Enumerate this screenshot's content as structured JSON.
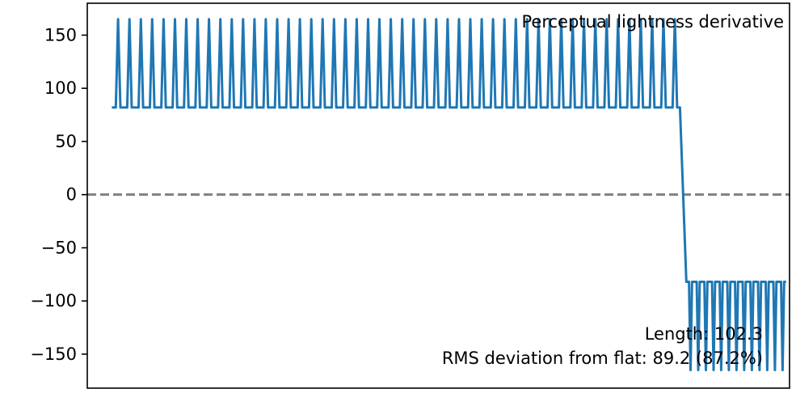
{
  "chart_data": {
    "type": "line",
    "title": "Perceptual lightness derivative",
    "xlabel": "",
    "ylabel": "",
    "ylim": [
      -182,
      180
    ],
    "xlim": [
      0,
      1
    ],
    "y_ticks": [
      150,
      100,
      50,
      0,
      -50,
      -100,
      -150
    ],
    "y_tick_labels": [
      "150",
      "100",
      "50",
      "0",
      "−50",
      "−100",
      "−150"
    ],
    "grid": false,
    "reference_line": {
      "y": 0,
      "style": "dashed",
      "color": "#808080"
    },
    "series": [
      {
        "color": "#1f77b4",
        "segments": [
          {
            "x_start": 0.035,
            "x_end": 0.844,
            "base": 82,
            "peak": 165,
            "spikes": 50,
            "direction": "up"
          },
          {
            "x_start": 0.844,
            "x_end": 0.853,
            "from": 82,
            "to": -82,
            "direction": "transition"
          },
          {
            "x_start": 0.853,
            "x_end": 0.995,
            "base": -82,
            "peak": -165,
            "spikes": 13,
            "direction": "down"
          }
        ]
      }
    ],
    "annotations": {
      "top_right": "Perceptual lightness derivative",
      "length_text": "Length: 102.3",
      "rms_text": "RMS deviation from flat: 89.2 (87.2%)"
    }
  }
}
